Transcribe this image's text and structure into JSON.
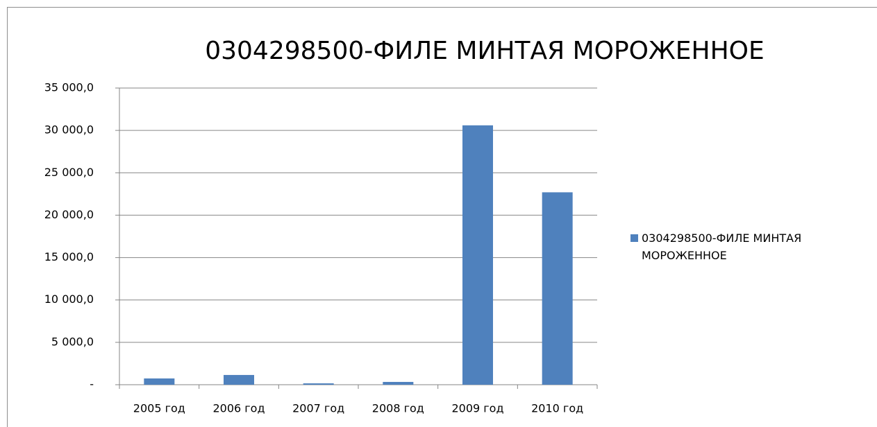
{
  "chart_data": {
    "type": "bar",
    "title": "0304298500-ФИЛЕ МИНТАЯ  МОРОЖЕННОЕ",
    "categories": [
      "2005 год",
      "2006 год",
      "2007 год",
      "2008 год",
      "2009 год",
      "2010 год"
    ],
    "series": [
      {
        "name": "0304298500-ФИЛЕ МИНТАЯ МОРОЖЕННОЕ",
        "color": "#4f81bd",
        "values": [
          740,
          1150,
          160,
          330,
          30600,
          22700
        ]
      }
    ],
    "ylim": [
      0,
      35000
    ],
    "yticks": [
      {
        "value": 0,
        "label": "-"
      },
      {
        "value": 5000,
        "label": "5 000,0"
      },
      {
        "value": 10000,
        "label": "10 000,0"
      },
      {
        "value": 15000,
        "label": "15 000,0"
      },
      {
        "value": 20000,
        "label": "20 000,0"
      },
      {
        "value": 25000,
        "label": "25 000,0"
      },
      {
        "value": 30000,
        "label": "30 000,0"
      },
      {
        "value": 35000,
        "label": "35 000,0"
      }
    ],
    "grid": true,
    "legend": "right"
  }
}
